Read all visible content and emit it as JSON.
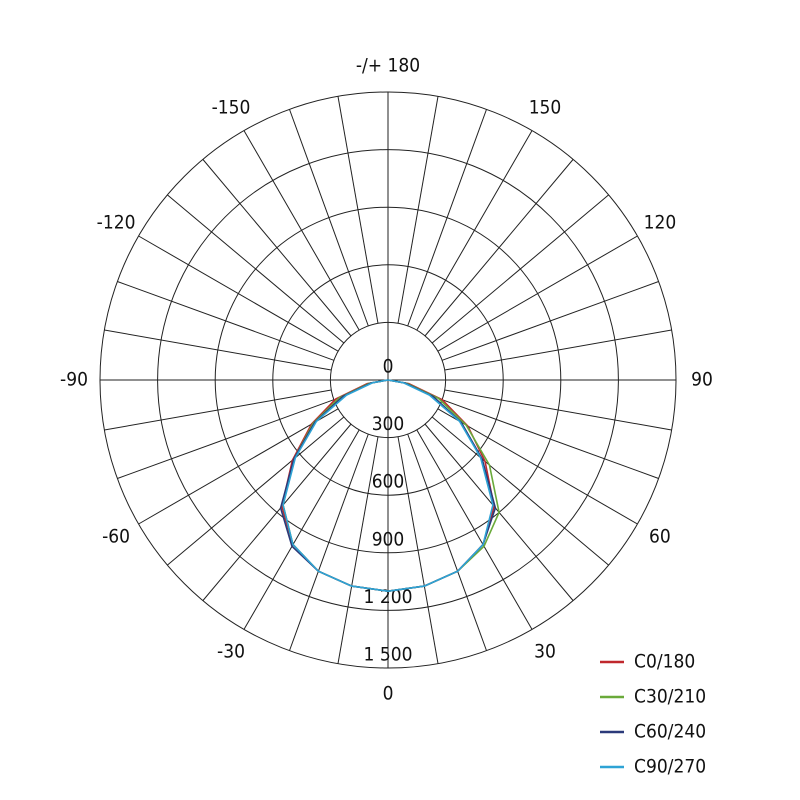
{
  "chart_data": {
    "type": "polar",
    "angles": [
      -90,
      -80,
      -70,
      -60,
      -50,
      -40,
      -30,
      -20,
      -10,
      0,
      10,
      20,
      30,
      40,
      50,
      60,
      70,
      80,
      90
    ],
    "rlim": [
      0,
      1500
    ],
    "rticks": [
      0,
      300,
      600,
      900,
      {
        "value": 1200,
        "label": "1 200"
      },
      {
        "value": 1500,
        "label": "1 500"
      }
    ],
    "angle_ticks": [
      0,
      30,
      60,
      90,
      120,
      150,
      {
        "value": 180,
        "label": "-/+ 180"
      },
      -150,
      -120,
      -90,
      -60,
      -30
    ],
    "series": [
      {
        "name": "C0/180",
        "color": "#c0282d",
        "values": [
          0,
          110,
          290,
          460,
          650,
          860,
          990,
          1060,
          1090,
          1100,
          1090,
          1060,
          990,
          860,
          660,
          480,
          300,
          110,
          0
        ]
      },
      {
        "name": "C30/210",
        "color": "#6aaa3a",
        "values": [
          0,
          100,
          270,
          450,
          640,
          850,
          990,
          1060,
          1090,
          1100,
          1090,
          1060,
          1000,
          900,
          690,
          470,
          280,
          100,
          0
        ]
      },
      {
        "name": "C60/240",
        "color": "#2b3a7a",
        "values": [
          0,
          90,
          250,
          440,
          640,
          870,
          1000,
          1060,
          1090,
          1100,
          1090,
          1060,
          990,
          870,
          640,
          440,
          250,
          90,
          0
        ]
      },
      {
        "name": "C90/270",
        "color": "#2ea3d5",
        "values": [
          0,
          80,
          230,
          430,
          630,
          850,
          990,
          1060,
          1090,
          1100,
          1090,
          1060,
          990,
          850,
          630,
          430,
          230,
          80,
          0
        ]
      }
    ],
    "legend": "bottom-right"
  }
}
